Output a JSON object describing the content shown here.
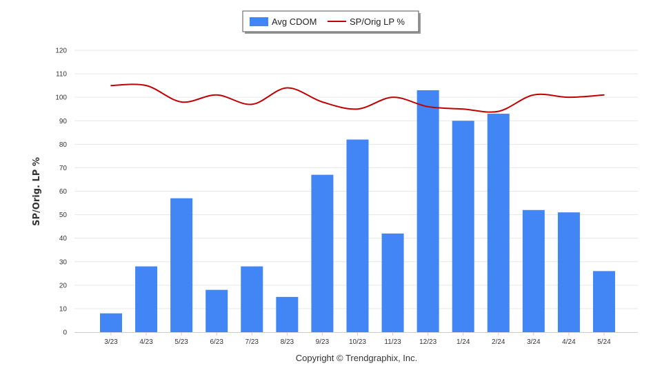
{
  "chart_data": {
    "type": "bar",
    "title": "",
    "xlabel": "",
    "ylabel": "SP/Orig. LP %",
    "ylim": [
      0,
      120
    ],
    "yticks": [
      0,
      10,
      20,
      30,
      40,
      50,
      60,
      70,
      80,
      90,
      100,
      110,
      120
    ],
    "grid": true,
    "legend_position": "top-center",
    "categories": [
      "3/23",
      "4/23",
      "5/23",
      "6/23",
      "7/23",
      "8/23",
      "9/23",
      "10/23",
      "11/23",
      "12/23",
      "1/24",
      "2/24",
      "3/24",
      "4/24",
      "5/24"
    ],
    "series": [
      {
        "name": "Avg CDOM",
        "kind": "bar",
        "color": "#4285F4",
        "values": [
          8,
          28,
          57,
          18,
          28,
          15,
          67,
          82,
          42,
          103,
          90,
          93,
          52,
          51,
          26
        ]
      },
      {
        "name": "SP/Orig LP %",
        "kind": "line",
        "color": "#C00000",
        "values": [
          105,
          105,
          98,
          101,
          97,
          104,
          98,
          95,
          100,
          96,
          95,
          94,
          101,
          100,
          101
        ]
      }
    ],
    "footer": "Copyright © Trendgraphix, Inc."
  }
}
